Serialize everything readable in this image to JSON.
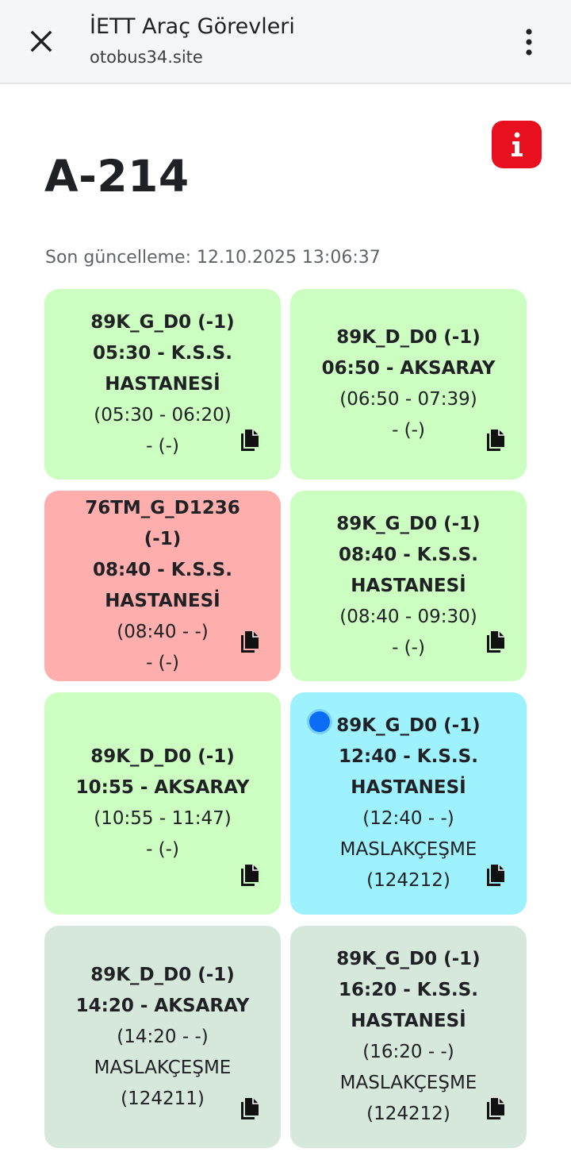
{
  "browser": {
    "title": "İETT Araç Görevleri",
    "url": "otobus34.site",
    "close_icon": "close-icon",
    "menu_icon": "more-vert-icon"
  },
  "page": {
    "vehicle": "A-214",
    "last_update": "Son güncelleme: 12.10.2025 13:06:37",
    "info_icon": "info-icon",
    "info_color": "#e8101e"
  },
  "colors": {
    "green": "#ccfec2",
    "red": "#ffaeae",
    "cyan": "#9ef2fd",
    "mint": "#d5e8db"
  },
  "tasks": [
    {
      "route": "89K_G_D0 (-1)",
      "departure": "05:30 - K.S.S. HASTANESİ",
      "times": "(05:30 - 06:20)",
      "driver": "- (-)"
    },
    {
      "route": "89K_D_D0 (-1)",
      "departure": "06:50 - AKSARAY",
      "times": "(06:50 - 07:39)",
      "driver": "- (-)"
    },
    {
      "route": "76TM_G_D1236 (-1)",
      "departure": "08:40 - K.S.S. HASTANESİ",
      "times": "(08:40 - -)",
      "driver": "- (-)"
    },
    {
      "route": "89K_G_D0 (-1)",
      "departure": "08:40 - K.S.S. HASTANESİ",
      "times": "(08:40 - 09:30)",
      "driver": "- (-)"
    },
    {
      "route": "89K_D_D0 (-1)",
      "departure": "10:55 - AKSARAY",
      "times": "(10:55 - 11:47)",
      "driver": "- (-)"
    },
    {
      "route": "89K_G_D0 (-1)",
      "departure": "12:40 - K.S.S. HASTANESİ",
      "times": "(12:40 - -)",
      "driver": "MASLAKÇEŞME (124212)"
    },
    {
      "route": "89K_D_D0 (-1)",
      "departure": "14:20 - AKSARAY",
      "times": "(14:20 - -)",
      "driver": "MASLAKÇEŞME (124211)"
    },
    {
      "route": "89K_G_D0 (-1)",
      "departure": "16:20 - K.S.S. HASTANESİ",
      "times": "(16:20 - -)",
      "driver": "MASLAKÇEŞME (124212)"
    }
  ]
}
